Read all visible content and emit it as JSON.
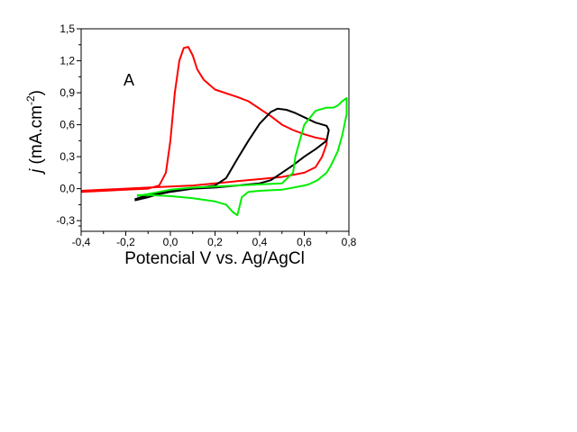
{
  "chart_data": {
    "type": "line",
    "panel_label": "A",
    "xlabel": "Potencial V vs. Ag/AgCl",
    "ylabel": {
      "italic": "j",
      "main": " (mA.cm",
      "sup": "-2",
      "close": ")"
    },
    "xlim": [
      -0.4,
      0.8
    ],
    "ylim": [
      -0.4,
      1.5
    ],
    "xticks": [
      -0.4,
      -0.2,
      0.0,
      0.2,
      0.4,
      0.6,
      0.8
    ],
    "yticks": [
      -0.3,
      0.0,
      0.3,
      0.6,
      0.9,
      1.2,
      1.5
    ],
    "xtick_labels": [
      "-0,4",
      "-0,2",
      "0,0",
      "0,2",
      "0,4",
      "0,6",
      "0,8"
    ],
    "ytick_labels": [
      "-0,3",
      "0,0",
      "0,3",
      "0,6",
      "0,9",
      "1,2",
      "1,5"
    ],
    "grid": false,
    "legend": "none",
    "series": [
      {
        "color": "#ff0000",
        "x": [
          -0.4,
          -0.3,
          -0.2,
          -0.1,
          -0.05,
          -0.02,
          0.0,
          0.02,
          0.04,
          0.06,
          0.08,
          0.1,
          0.12,
          0.15,
          0.2,
          0.3,
          0.35,
          0.4,
          0.45,
          0.5,
          0.55,
          0.6,
          0.65,
          0.7,
          0.7,
          0.68,
          0.65,
          0.6,
          0.5,
          0.4,
          0.3,
          0.2,
          0.1,
          0.0,
          -0.1,
          -0.2,
          -0.3,
          -0.4
        ],
        "y": [
          -0.03,
          -0.02,
          -0.01,
          0.0,
          0.03,
          0.15,
          0.45,
          0.9,
          1.2,
          1.32,
          1.33,
          1.25,
          1.12,
          1.02,
          0.93,
          0.86,
          0.82,
          0.75,
          0.68,
          0.6,
          0.55,
          0.51,
          0.48,
          0.46,
          0.42,
          0.3,
          0.2,
          0.15,
          0.11,
          0.09,
          0.07,
          0.05,
          0.03,
          0.02,
          0.01,
          0.0,
          -0.01,
          -0.02
        ]
      },
      {
        "color": "#000000",
        "x": [
          -0.16,
          -0.1,
          -0.05,
          0.0,
          0.1,
          0.2,
          0.25,
          0.3,
          0.35,
          0.4,
          0.45,
          0.48,
          0.52,
          0.56,
          0.6,
          0.65,
          0.7,
          0.71,
          0.7,
          0.65,
          0.6,
          0.55,
          0.5,
          0.45,
          0.4,
          0.35,
          0.3,
          0.25,
          0.2,
          0.1,
          0.0,
          -0.1,
          -0.16
        ],
        "y": [
          -0.11,
          -0.08,
          -0.05,
          -0.03,
          0.0,
          0.03,
          0.1,
          0.28,
          0.45,
          0.61,
          0.72,
          0.75,
          0.74,
          0.71,
          0.67,
          0.62,
          0.59,
          0.55,
          0.45,
          0.37,
          0.3,
          0.22,
          0.15,
          0.08,
          0.05,
          0.04,
          0.03,
          0.02,
          0.01,
          0.0,
          -0.02,
          -0.06,
          -0.1
        ]
      },
      {
        "color": "#00ee00",
        "x": [
          -0.15,
          -0.1,
          -0.05,
          0.0,
          0.1,
          0.2,
          0.3,
          0.4,
          0.5,
          0.55,
          0.56,
          0.58,
          0.6,
          0.65,
          0.7,
          0.73,
          0.75,
          0.77,
          0.79,
          0.79,
          0.77,
          0.75,
          0.72,
          0.7,
          0.66,
          0.62,
          0.6,
          0.5,
          0.4,
          0.35,
          0.32,
          0.3,
          0.28,
          0.25,
          0.2,
          0.1,
          0.0,
          -0.1,
          -0.15
        ],
        "y": [
          -0.07,
          -0.05,
          -0.03,
          -0.01,
          0.01,
          0.02,
          0.03,
          0.04,
          0.05,
          0.15,
          0.3,
          0.45,
          0.6,
          0.73,
          0.76,
          0.76,
          0.78,
          0.82,
          0.85,
          0.7,
          0.5,
          0.35,
          0.22,
          0.15,
          0.08,
          0.04,
          0.03,
          -0.01,
          -0.02,
          -0.03,
          -0.08,
          -0.25,
          -0.22,
          -0.15,
          -0.12,
          -0.09,
          -0.07,
          -0.06,
          -0.06
        ]
      }
    ]
  }
}
